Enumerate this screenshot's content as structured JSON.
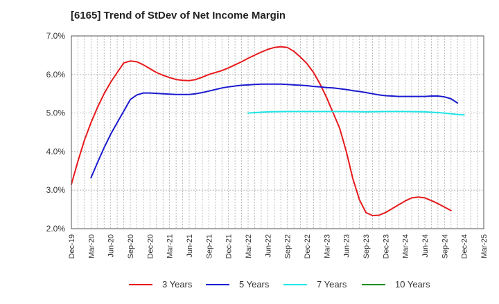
{
  "chart_data": {
    "type": "line",
    "title": "[6165]  Trend of StDev of Net Income Margin",
    "xlabel": "",
    "ylabel": "",
    "ylim": [
      2.0,
      7.0
    ],
    "y_ticks": [
      "2.0%",
      "3.0%",
      "4.0%",
      "5.0%",
      "6.0%",
      "7.0%"
    ],
    "x_ticks": [
      "Dec-19",
      "Mar-20",
      "Jun-20",
      "Sep-20",
      "Dec-20",
      "Mar-21",
      "Jun-21",
      "Sep-21",
      "Dec-21",
      "Mar-22",
      "Jun-22",
      "Sep-22",
      "Dec-22",
      "Mar-23",
      "Jun-23",
      "Sep-23",
      "Dec-23",
      "Mar-24",
      "Jun-24",
      "Sep-24",
      "Dec-24",
      "Mar-25"
    ],
    "grid": true,
    "legend_position": "bottom",
    "series": [
      {
        "name": "3 Years",
        "color": "#e8191b",
        "points": [
          [
            "Dec-19",
            3.15
          ],
          [
            "Jan-20",
            3.75
          ],
          [
            "Feb-20",
            4.3
          ],
          [
            "Mar-20",
            4.75
          ],
          [
            "Apr-20",
            5.15
          ],
          [
            "May-20",
            5.5
          ],
          [
            "Jun-20",
            5.8
          ],
          [
            "Jul-20",
            6.05
          ],
          [
            "Aug-20",
            6.3
          ],
          [
            "Sep-20",
            6.35
          ],
          [
            "Oct-20",
            6.33
          ],
          [
            "Nov-20",
            6.25
          ],
          [
            "Dec-20",
            6.15
          ],
          [
            "Jan-21",
            6.05
          ],
          [
            "Feb-21",
            5.98
          ],
          [
            "Mar-21",
            5.92
          ],
          [
            "Apr-21",
            5.87
          ],
          [
            "May-21",
            5.85
          ],
          [
            "Jun-21",
            5.84
          ],
          [
            "Jul-21",
            5.87
          ],
          [
            "Aug-21",
            5.93
          ],
          [
            "Sep-21",
            6.0
          ],
          [
            "Oct-21",
            6.05
          ],
          [
            "Nov-21",
            6.1
          ],
          [
            "Dec-21",
            6.17
          ],
          [
            "Jan-22",
            6.25
          ],
          [
            "Feb-22",
            6.33
          ],
          [
            "Mar-22",
            6.42
          ],
          [
            "Apr-22",
            6.5
          ],
          [
            "May-22",
            6.58
          ],
          [
            "Jun-22",
            6.65
          ],
          [
            "Jul-22",
            6.7
          ],
          [
            "Aug-22",
            6.72
          ],
          [
            "Sep-22",
            6.7
          ],
          [
            "Oct-22",
            6.6
          ],
          [
            "Nov-22",
            6.45
          ],
          [
            "Dec-22",
            6.28
          ],
          [
            "Jan-23",
            6.05
          ],
          [
            "Feb-23",
            5.75
          ],
          [
            "Mar-23",
            5.4
          ],
          [
            "Apr-23",
            5.0
          ],
          [
            "May-23",
            4.6
          ],
          [
            "Jun-23",
            4.0
          ],
          [
            "Jul-23",
            3.3
          ],
          [
            "Aug-23",
            2.75
          ],
          [
            "Sep-23",
            2.42
          ],
          [
            "Oct-23",
            2.34
          ],
          [
            "Nov-23",
            2.35
          ],
          [
            "Dec-23",
            2.42
          ],
          [
            "Jan-24",
            2.52
          ],
          [
            "Feb-24",
            2.62
          ],
          [
            "Mar-24",
            2.72
          ],
          [
            "Apr-24",
            2.8
          ],
          [
            "May-24",
            2.82
          ],
          [
            "Jun-24",
            2.8
          ],
          [
            "Jul-24",
            2.73
          ],
          [
            "Aug-24",
            2.65
          ],
          [
            "Sep-24",
            2.56
          ],
          [
            "Oct-24",
            2.47
          ]
        ]
      },
      {
        "name": "5 Years",
        "color": "#1a1ad0",
        "points": [
          [
            "Mar-20",
            3.32
          ],
          [
            "Apr-20",
            3.72
          ],
          [
            "May-20",
            4.1
          ],
          [
            "Jun-20",
            4.45
          ],
          [
            "Jul-20",
            4.75
          ],
          [
            "Aug-20",
            5.05
          ],
          [
            "Sep-20",
            5.35
          ],
          [
            "Oct-20",
            5.47
          ],
          [
            "Nov-20",
            5.52
          ],
          [
            "Dec-20",
            5.52
          ],
          [
            "Jan-21",
            5.51
          ],
          [
            "Feb-21",
            5.5
          ],
          [
            "Mar-21",
            5.49
          ],
          [
            "Apr-21",
            5.48
          ],
          [
            "May-21",
            5.48
          ],
          [
            "Jun-21",
            5.48
          ],
          [
            "Jul-21",
            5.5
          ],
          [
            "Aug-21",
            5.53
          ],
          [
            "Sep-21",
            5.57
          ],
          [
            "Oct-21",
            5.61
          ],
          [
            "Nov-21",
            5.65
          ],
          [
            "Dec-21",
            5.68
          ],
          [
            "Jan-22",
            5.7
          ],
          [
            "Feb-22",
            5.72
          ],
          [
            "Mar-22",
            5.73
          ],
          [
            "Apr-22",
            5.74
          ],
          [
            "May-22",
            5.75
          ],
          [
            "Jun-22",
            5.75
          ],
          [
            "Jul-22",
            5.75
          ],
          [
            "Aug-22",
            5.75
          ],
          [
            "Sep-22",
            5.74
          ],
          [
            "Oct-22",
            5.73
          ],
          [
            "Nov-22",
            5.72
          ],
          [
            "Dec-22",
            5.71
          ],
          [
            "Jan-23",
            5.69
          ],
          [
            "Feb-23",
            5.68
          ],
          [
            "Mar-23",
            5.66
          ],
          [
            "Apr-23",
            5.65
          ],
          [
            "May-23",
            5.63
          ],
          [
            "Jun-23",
            5.61
          ],
          [
            "Jul-23",
            5.58
          ],
          [
            "Aug-23",
            5.56
          ],
          [
            "Sep-23",
            5.53
          ],
          [
            "Oct-23",
            5.5
          ],
          [
            "Nov-23",
            5.47
          ],
          [
            "Dec-23",
            5.45
          ],
          [
            "Jan-24",
            5.44
          ],
          [
            "Feb-24",
            5.43
          ],
          [
            "Mar-24",
            5.43
          ],
          [
            "Apr-24",
            5.43
          ],
          [
            "May-24",
            5.43
          ],
          [
            "Jun-24",
            5.43
          ],
          [
            "Jul-24",
            5.44
          ],
          [
            "Aug-24",
            5.44
          ],
          [
            "Sep-24",
            5.42
          ],
          [
            "Oct-24",
            5.37
          ],
          [
            "Nov-24",
            5.26
          ]
        ]
      },
      {
        "name": "7 Years",
        "color": "#1ee6e6",
        "points": [
          [
            "Mar-22",
            5.0
          ],
          [
            "Jun-22",
            5.03
          ],
          [
            "Sep-22",
            5.04
          ],
          [
            "Dec-22",
            5.04
          ],
          [
            "Mar-23",
            5.04
          ],
          [
            "Jun-23",
            5.04
          ],
          [
            "Sep-23",
            5.03
          ],
          [
            "Dec-23",
            5.04
          ],
          [
            "Mar-24",
            5.04
          ],
          [
            "Jun-24",
            5.03
          ],
          [
            "Sep-24",
            5.0
          ],
          [
            "Nov-24",
            4.96
          ],
          [
            "Dec-24",
            4.95
          ]
        ]
      },
      {
        "name": "10 Years",
        "color": "#1f8f1f",
        "points": []
      }
    ]
  }
}
